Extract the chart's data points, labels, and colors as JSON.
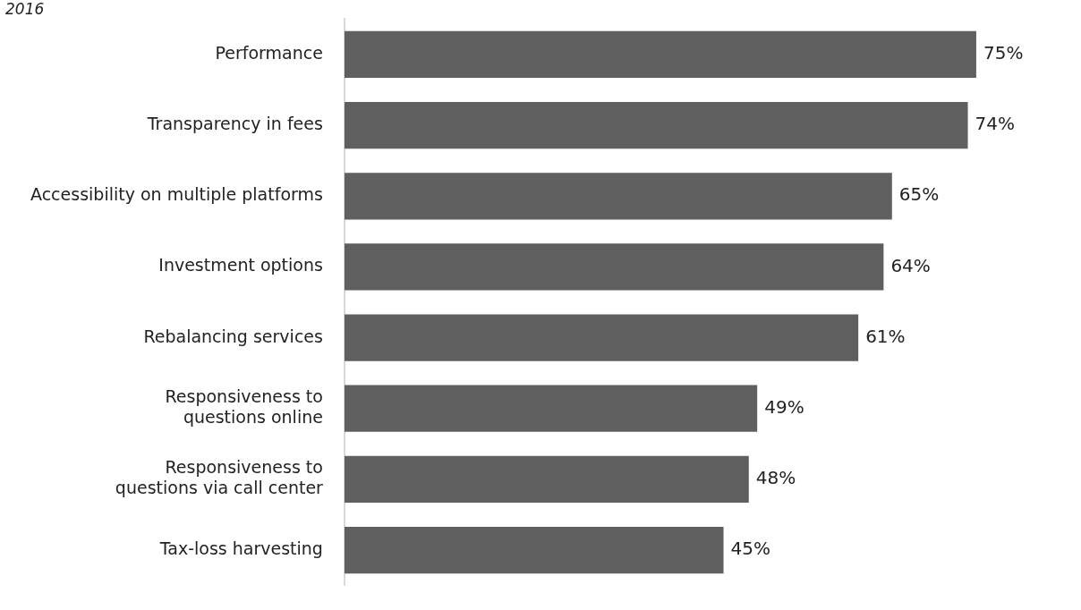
{
  "chart_data": {
    "type": "bar",
    "orientation": "horizontal",
    "subtitle": "2016",
    "categories": [
      "Performance",
      "Transparency in fees",
      "Accessibility on multiple platforms",
      "Investment options",
      "Rebalancing services",
      "Responsiveness to\nquestions online",
      "Responsiveness to\nquestions via call center",
      "Tax-loss harvesting"
    ],
    "values": [
      75,
      74,
      65,
      64,
      61,
      49,
      48,
      45
    ],
    "value_labels": [
      "75%",
      "74%",
      "65%",
      "64%",
      "61%",
      "49%",
      "48%",
      "45%"
    ],
    "color": "#5f5f5f"
  }
}
